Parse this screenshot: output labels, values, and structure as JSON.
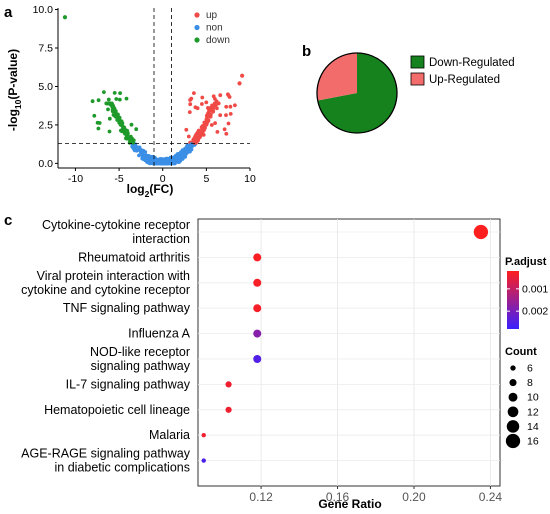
{
  "chart_data": [
    {
      "id": "volcano",
      "panel": "a",
      "type": "scatter",
      "xlabel_main": "log",
      "xlabel_sub": "2",
      "xlabel_tail": "(FC)",
      "ylabel_main": "-log",
      "ylabel_sub": "10",
      "ylabel_tail": "(P-value)",
      "xlim": [
        -12,
        10
      ],
      "ylim": [
        -0.3,
        10.1
      ],
      "xticks": [
        "-10",
        "-5",
        "0",
        "5",
        "10"
      ],
      "xtick_values": [
        -10,
        -5,
        0,
        5,
        10
      ],
      "yticks": [
        "0.0",
        "2.5",
        "5.0",
        "7.5",
        "10.0"
      ],
      "ytick_values": [
        0,
        2.5,
        5,
        7.5,
        10
      ],
      "thresholds": {
        "x": [
          -1,
          1
        ],
        "y": 1.3
      },
      "legend": [
        {
          "label": "up",
          "color": "#f04a46"
        },
        {
          "label": "non",
          "color": "#3a8ee6"
        },
        {
          "label": "down",
          "color": "#1e9a2a"
        }
      ],
      "outliers": [
        {
          "x": -11.2,
          "y": 9.5,
          "group": "down"
        },
        {
          "x": 9.1,
          "y": 5.7,
          "group": "up"
        },
        {
          "x": 8.8,
          "y": 5.2,
          "group": "up"
        }
      ]
    },
    {
      "id": "pie",
      "panel": "b",
      "type": "pie",
      "slices": [
        {
          "label": "Down-Regulated",
          "value": 72,
          "color": "#16821e"
        },
        {
          "label": "Up-Regulated",
          "value": 28,
          "color": "#f36c6c"
        }
      ]
    },
    {
      "id": "dotplot",
      "panel": "c",
      "type": "scatter",
      "xlabel": "Gene Ratio",
      "xlim": [
        0.087,
        0.245
      ],
      "xticks": [
        "0.12",
        "0.16",
        "0.20",
        "0.24"
      ],
      "xtick_values": [
        0.12,
        0.16,
        0.2,
        0.24
      ],
      "terms": [
        {
          "line1": "Cytokine-cytokine receptor",
          "line2": "interaction",
          "ratio": 0.235,
          "count": 16,
          "padj": 0.0002
        },
        {
          "line1": "Rheumatoid arthritis",
          "line2": "",
          "ratio": 0.118,
          "count": 9,
          "padj": 0.00025
        },
        {
          "line1": "Viral protein interaction with",
          "line2": "cytokine and cytokine receptor",
          "ratio": 0.118,
          "count": 9,
          "padj": 0.0003
        },
        {
          "line1": "TNF signaling pathway",
          "line2": "",
          "ratio": 0.118,
          "count": 9,
          "padj": 0.0003
        },
        {
          "line1": "Influenza A",
          "line2": "",
          "ratio": 0.118,
          "count": 9,
          "padj": 0.0018
        },
        {
          "line1": "NOD-like receptor",
          "line2": "signaling pathway",
          "ratio": 0.118,
          "count": 9,
          "padj": 0.0025
        },
        {
          "line1": "IL-7 signaling pathway",
          "line2": "",
          "ratio": 0.103,
          "count": 7,
          "padj": 0.0004
        },
        {
          "line1": "Hematopoietic cell lineage",
          "line2": "",
          "ratio": 0.103,
          "count": 7,
          "padj": 0.0004
        },
        {
          "line1": "Malaria",
          "line2": "",
          "ratio": 0.09,
          "count": 5,
          "padj": 0.0004
        },
        {
          "line1": "AGE-RAGE signaling pathway",
          "line2": "in diabetic complications",
          "ratio": 0.09,
          "count": 5,
          "padj": 0.0026
        }
      ],
      "color_legend": {
        "title": "P.adjust",
        "labels": [
          "0.001",
          "0.002"
        ],
        "values": [
          0.001,
          0.002
        ],
        "min": 0.0002,
        "max": 0.0028,
        "low_color": "#ff1f1f",
        "high_color": "#3a1fff"
      },
      "size_legend": {
        "title": "Count",
        "labels": [
          "6",
          "8",
          "10",
          "12",
          "14",
          "16"
        ],
        "values": [
          6,
          8,
          10,
          12,
          14,
          16
        ]
      }
    }
  ]
}
